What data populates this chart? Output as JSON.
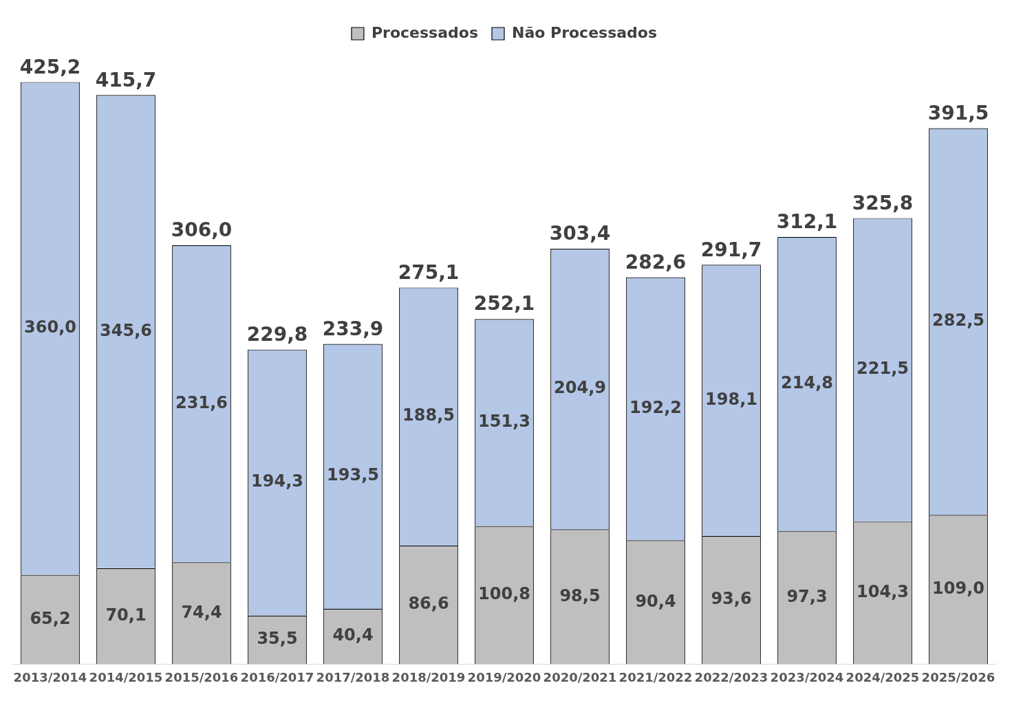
{
  "chart_data": {
    "type": "bar",
    "stacked": true,
    "legend": "top",
    "grid": false,
    "categories": [
      "2013/2014",
      "2014/2015",
      "2015/2016",
      "2016/2017",
      "2017/2018",
      "2018/2019",
      "2019/2020",
      "2020/2021",
      "2021/2022",
      "2022/2023",
      "2023/2024",
      "2024/2025",
      "2025/2026"
    ],
    "series": [
      {
        "name": "Processados",
        "color": "#bfbfbf",
        "values": [
          65.2,
          70.1,
          74.4,
          35.5,
          40.4,
          86.6,
          100.8,
          98.5,
          90.4,
          93.6,
          97.3,
          104.3,
          109.0
        ],
        "value_labels": [
          "65,2",
          "70,1",
          "74,4",
          "35,5",
          "40,4",
          "86,6",
          "100,8",
          "98,5",
          "90,4",
          "93,6",
          "97,3",
          "104,3",
          "109,0"
        ]
      },
      {
        "name": "Não Processados",
        "color": "#b4c7e7",
        "values": [
          360.0,
          345.6,
          231.6,
          194.3,
          193.5,
          188.5,
          151.3,
          204.9,
          192.2,
          198.1,
          214.8,
          221.5,
          282.5
        ],
        "value_labels": [
          "360,0",
          "345,6",
          "231,6",
          "194,3",
          "193,5",
          "188,5",
          "151,3",
          "204,9",
          "192,2",
          "198,1",
          "214,8",
          "221,5",
          "282,5"
        ]
      }
    ],
    "totals": [
      "425,2",
      "415,7",
      "306,0",
      "229,8",
      "233,9",
      "275,1",
      "252,1",
      "303,4",
      "282,6",
      "291,7",
      "312,1",
      "325,8",
      "391,5"
    ]
  }
}
